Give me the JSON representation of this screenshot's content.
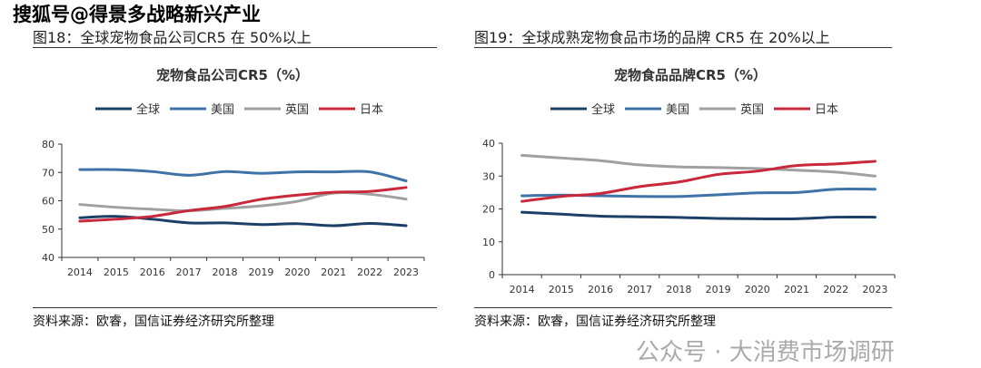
{
  "watermarks": {
    "top": "搜狐号@得景多战略新兴产业",
    "bottom": "公众号 · 大消费市场调研"
  },
  "chart_data": [
    {
      "type": "line",
      "figure_title": "图18：全球宠物食品公司CR5 在 50%以上",
      "title": "宠物食品公司CR5（%）",
      "categories": [
        "2014",
        "2015",
        "2016",
        "2017",
        "2018",
        "2019",
        "2020",
        "2021",
        "2022",
        "2023"
      ],
      "ylim": [
        40,
        80
      ],
      "yticks": [
        40,
        50,
        60,
        70,
        80
      ],
      "legend_position": "top",
      "series": [
        {
          "name": "全球",
          "color": "#1b3f66",
          "values": [
            54,
            54.5,
            53.5,
            52.2,
            52.2,
            51.6,
            51.9,
            51.2,
            52,
            51.2
          ]
        },
        {
          "name": "美国",
          "color": "#3f73a8",
          "values": [
            71,
            71,
            70.3,
            69,
            70.3,
            69.7,
            70.2,
            70.2,
            70.2,
            67
          ]
        },
        {
          "name": "英国",
          "color": "#a0a0a0",
          "values": [
            58.7,
            57.7,
            57,
            56.5,
            57.3,
            58.2,
            59.8,
            62.7,
            62.3,
            60.6
          ]
        },
        {
          "name": "日本",
          "color": "#c8283a",
          "values": [
            52.8,
            53.5,
            54.5,
            56.5,
            58,
            60.5,
            62,
            63,
            63.3,
            64.7
          ]
        }
      ],
      "source": "资料来源：欧睿，国信证券经济研究所整理"
    },
    {
      "type": "line",
      "figure_title": "图19：全球成熟宠物食品市场的品牌 CR5 在 20%以上",
      "title": "宠物食品品牌CR5（%）",
      "categories": [
        "2014",
        "2015",
        "2016",
        "2017",
        "2018",
        "2019",
        "2020",
        "2021",
        "2022",
        "2023"
      ],
      "ylim": [
        0,
        40
      ],
      "yticks": [
        0,
        10,
        20,
        30,
        40
      ],
      "legend_position": "top",
      "series": [
        {
          "name": "全球",
          "color": "#1b3f66",
          "values": [
            19,
            18.4,
            17.8,
            17.6,
            17.4,
            17.1,
            17,
            17,
            17.5,
            17.5
          ]
        },
        {
          "name": "美国",
          "color": "#3f73a8",
          "values": [
            24,
            24.2,
            24,
            23.8,
            23.8,
            24.3,
            24.9,
            25,
            26,
            26
          ]
        },
        {
          "name": "英国",
          "color": "#a0a0a0",
          "values": [
            36.3,
            35.5,
            34.7,
            33.4,
            32.8,
            32.6,
            32.3,
            31.8,
            31.2,
            30
          ]
        },
        {
          "name": "日本",
          "color": "#c8283a",
          "values": [
            22.3,
            23.8,
            24.7,
            26.8,
            28.2,
            30.5,
            31.5,
            33.2,
            33.7,
            34.5
          ]
        }
      ],
      "source": "资料来源：欧睿，国信证券经济研究所整理"
    }
  ]
}
